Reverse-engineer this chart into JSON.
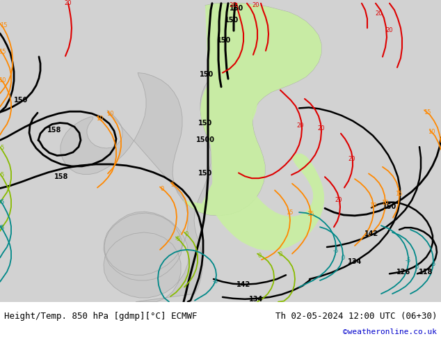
{
  "title_left": "Height/Temp. 850 hPa [gdmp][°C] ECMWF",
  "title_right": "Th 02-05-2024 12:00 UTC (06+30)",
  "credit": "©weatheronline.co.uk",
  "bg_color": "#d2d2d2",
  "highlight_color": "#c8f0a0",
  "footer_bg": "#ffffff",
  "figsize": [
    6.34,
    4.9
  ],
  "dpi": 100
}
